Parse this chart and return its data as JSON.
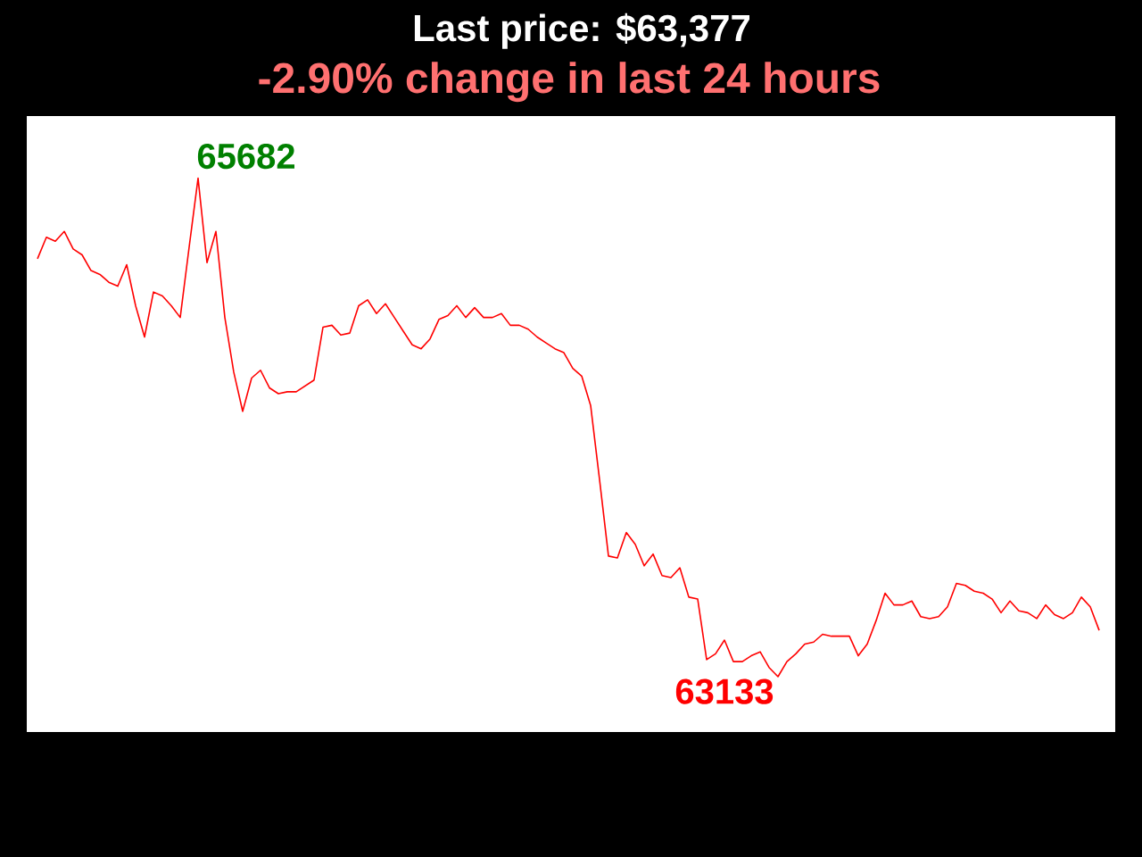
{
  "chart_data": {
    "type": "line",
    "title": "Last price: $63,377",
    "subtitle": "-2.90% change in last 24 hours",
    "categories": [
      null,
      null,
      null,
      null,
      null,
      null,
      null,
      null,
      null,
      null,
      null,
      null,
      null,
      null,
      null,
      null,
      null,
      null,
      null,
      null,
      null,
      null,
      null,
      null,
      null,
      null,
      null,
      null,
      null,
      null,
      null,
      null,
      null,
      null,
      null,
      null,
      null,
      null,
      null,
      null,
      null,
      null,
      null,
      null,
      null,
      null,
      null,
      null,
      null,
      null,
      null,
      null,
      null,
      null,
      null,
      null,
      null,
      null,
      null,
      null,
      null,
      null,
      null,
      null,
      null,
      null,
      null,
      null,
      null,
      null,
      null,
      null,
      null,
      null,
      null,
      null,
      null,
      null,
      null,
      null,
      null,
      null,
      null,
      null,
      null,
      null,
      null,
      null,
      null,
      null,
      null,
      null,
      null,
      null,
      null,
      null,
      null,
      null,
      null,
      null,
      null,
      null,
      null,
      null,
      null,
      null,
      null,
      null,
      null,
      null,
      null,
      null,
      null,
      null,
      null,
      null,
      null,
      null,
      null,
      null
    ],
    "series": [
      {
        "color": "#ff0000",
        "values": [
          65270,
          65380,
          65360,
          65410,
          65320,
          65290,
          65210,
          65190,
          65150,
          65130,
          65240,
          65030,
          64870,
          65100,
          65080,
          65030,
          64970,
          65330,
          65682,
          65250,
          65410,
          64970,
          64690,
          64490,
          64660,
          64700,
          64610,
          64580,
          64590,
          64590,
          64620,
          64650,
          64920,
          64930,
          64880,
          64890,
          65030,
          65060,
          64990,
          65040,
          64970,
          64900,
          64830,
          64810,
          64860,
          64960,
          64980,
          65030,
          64970,
          65020,
          64970,
          64970,
          64990,
          64930,
          64930,
          64910,
          64870,
          64840,
          64810,
          64790,
          64710,
          64670,
          64520,
          64140,
          63750,
          63740,
          63870,
          63810,
          63700,
          63760,
          63650,
          63640,
          63690,
          63540,
          63530,
          63220,
          63250,
          63320,
          63210,
          63210,
          63240,
          63260,
          63180,
          63133,
          63210,
          63250,
          63300,
          63310,
          63350,
          63340,
          63340,
          63340,
          63240,
          63300,
          63420,
          63560,
          63500,
          63500,
          63520,
          63440,
          63430,
          63440,
          63490,
          63610,
          63600,
          63570,
          63560,
          63530,
          63460,
          63520,
          63470,
          63460,
          63430,
          63500,
          63450,
          63430,
          63460,
          63540,
          63490,
          63370
        ],
        "value_labels": [
          null,
          null,
          null,
          null,
          null,
          null,
          null,
          null,
          null,
          null,
          null,
          null,
          null,
          null,
          null,
          null,
          null,
          null,
          "65682",
          null,
          null,
          null,
          null,
          null,
          null,
          null,
          null,
          null,
          null,
          null,
          null,
          null,
          null,
          null,
          null,
          null,
          null,
          null,
          null,
          null,
          null,
          null,
          null,
          null,
          null,
          null,
          null,
          null,
          null,
          null,
          null,
          null,
          null,
          null,
          null,
          null,
          null,
          null,
          null,
          null,
          null,
          null,
          null,
          null,
          null,
          null,
          null,
          null,
          null,
          null,
          null,
          null,
          null,
          null,
          null,
          null,
          null,
          null,
          null,
          null,
          null,
          null,
          null,
          "63133",
          null,
          null,
          null,
          null,
          null,
          null,
          null,
          null,
          null,
          null,
          null,
          null,
          null,
          null,
          null,
          null,
          null,
          null,
          null,
          null,
          null,
          null,
          null,
          null,
          null,
          null,
          null,
          null,
          null,
          null,
          null,
          null,
          null,
          null,
          null,
          null
        ]
      }
    ],
    "ylim": [
      62850,
      66000
    ],
    "tick_labels": false
  }
}
